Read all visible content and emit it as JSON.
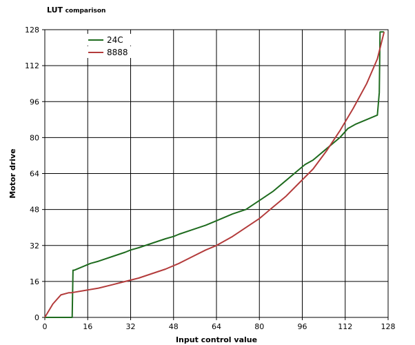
{
  "chart_data": {
    "type": "line",
    "title": "LUT",
    "subtitle": "comparison",
    "xlabel": "Input control value",
    "ylabel": "Motor drive",
    "xlim": [
      0,
      128
    ],
    "ylim": [
      0,
      128
    ],
    "xticks": [
      0,
      16,
      32,
      48,
      64,
      80,
      96,
      112,
      128
    ],
    "yticks": [
      0,
      16,
      32,
      48,
      64,
      80,
      96,
      112,
      128
    ],
    "grid": true,
    "legend": "top-left",
    "series": [
      {
        "name": "24C",
        "color": "#1e6b1e",
        "x": [
          0,
          10.2,
          10.5,
          11,
          13,
          15,
          17,
          20,
          25,
          30,
          32,
          35,
          40,
          45,
          48,
          50,
          55,
          60,
          64,
          70,
          75,
          80,
          85,
          90,
          95,
          97,
          100,
          105,
          110,
          113,
          116,
          120,
          124,
          124.7,
          125,
          126.5
        ],
        "values": [
          0,
          0,
          21,
          21,
          22,
          23,
          24,
          25,
          27,
          29,
          30,
          31,
          33,
          35,
          36,
          37,
          39,
          41,
          43,
          46,
          48,
          52,
          56,
          61,
          66,
          68,
          70,
          75,
          80,
          84,
          86,
          88,
          90,
          100,
          127,
          127
        ]
      },
      {
        "name": "8888",
        "color": "#b33b3b",
        "x": [
          0,
          3,
          6,
          9,
          10,
          15,
          20,
          25,
          30,
          35,
          40,
          45,
          50,
          55,
          60,
          64,
          70,
          75,
          80,
          85,
          90,
          95,
          100,
          105,
          110,
          115,
          120,
          124,
          126.5
        ],
        "values": [
          0,
          6,
          10,
          11,
          11,
          12,
          13,
          14.5,
          16,
          17.5,
          19.5,
          21.5,
          24,
          27,
          30,
          32,
          36,
          40,
          44,
          49,
          54,
          60,
          66,
          74,
          83,
          93,
          104,
          115,
          127
        ]
      }
    ]
  }
}
